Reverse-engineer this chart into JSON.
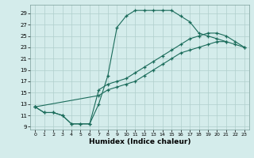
{
  "xlabel": "Humidex (Indice chaleur)",
  "bg_color": "#d4eceb",
  "grid_color": "#b0cfcc",
  "line_color": "#1a6b5a",
  "xlim": [
    -0.5,
    23.5
  ],
  "ylim": [
    8.5,
    30.5
  ],
  "xticks": [
    0,
    1,
    2,
    3,
    4,
    5,
    6,
    7,
    8,
    9,
    10,
    11,
    12,
    13,
    14,
    15,
    16,
    17,
    18,
    19,
    20,
    21,
    22,
    23
  ],
  "yticks": [
    9,
    11,
    13,
    15,
    17,
    19,
    21,
    23,
    25,
    27,
    29
  ],
  "s1x": [
    0,
    1,
    2,
    3,
    4,
    5,
    6,
    7,
    8,
    9,
    10,
    11,
    12,
    13,
    14,
    15,
    16,
    17,
    18,
    19,
    20,
    21
  ],
  "s1y": [
    12.5,
    11.5,
    11.5,
    11.0,
    9.5,
    9.5,
    9.5,
    13.0,
    18.0,
    26.5,
    28.5,
    29.5,
    29.5,
    29.5,
    29.5,
    29.5,
    28.5,
    27.5,
    25.5,
    25.0,
    24.5,
    24.0
  ],
  "s2x": [
    0,
    1,
    2,
    3,
    4,
    5,
    6,
    7,
    8,
    9,
    10,
    11,
    12,
    13,
    14,
    15,
    16,
    17,
    18,
    19,
    20,
    21,
    22,
    23
  ],
  "s2y": [
    12.5,
    11.5,
    11.5,
    11.0,
    9.5,
    9.5,
    9.5,
    15.5,
    16.5,
    17.0,
    17.5,
    18.5,
    19.5,
    20.5,
    21.5,
    22.5,
    23.5,
    24.5,
    25.0,
    25.5,
    25.5,
    25.0,
    24.0,
    23.0
  ],
  "s3x": [
    0,
    7,
    8,
    9,
    10,
    11,
    12,
    13,
    14,
    15,
    16,
    17,
    18,
    19,
    20,
    21,
    22,
    23
  ],
  "s3y": [
    12.5,
    14.5,
    15.5,
    16.0,
    16.5,
    17.0,
    18.0,
    19.0,
    20.0,
    21.0,
    22.0,
    22.5,
    23.0,
    23.5,
    24.0,
    24.0,
    23.5,
    23.0
  ]
}
